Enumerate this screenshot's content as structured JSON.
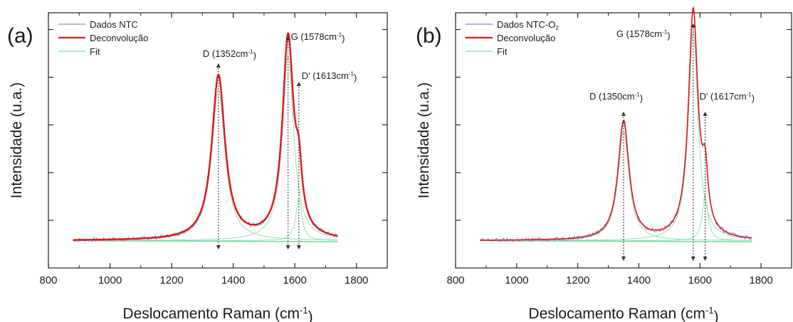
{
  "chart_data": [
    {
      "type": "line",
      "panel_label": "(a)",
      "xlabel": "Deslocamento Raman (cm",
      "xlabel_sup": "-1",
      "xlabel_suffix": ")",
      "ylabel": "Intensidade (u.a.)",
      "xlim": [
        800,
        1900
      ],
      "ylim": [
        -0.12,
        1.0
      ],
      "xticks": [
        800,
        1000,
        1200,
        1400,
        1600,
        1800
      ],
      "y_tick_labels_shown": false,
      "grid": false,
      "legend_position": "top-left",
      "legend": [
        {
          "label": "Dados NTC",
          "sub": "",
          "color": "#8a8fa8"
        },
        {
          "label": "Deconvolução",
          "sub": "",
          "color": "#e0161f"
        },
        {
          "label": "Fit",
          "sub": "",
          "color": "#7fdca8"
        }
      ],
      "annotations": [
        {
          "peak": "D",
          "label": "D (1352cm",
          "sup": "-1",
          "suffix": ")",
          "x": 1352
        },
        {
          "peak": "G",
          "label": "G (1578cm",
          "sup": "-1",
          "suffix": ")",
          "x": 1578
        },
        {
          "peak": "D'",
          "label": "D' (1613cm",
          "sup": "-1",
          "suffix": ")",
          "x": 1613
        }
      ],
      "series": [
        {
          "name": "Dados NTC",
          "color": "#8a8fa8",
          "role": "data"
        },
        {
          "name": "Deconvolução",
          "color": "#e0161f",
          "role": "fit_total",
          "x_range": [
            880,
            1740
          ],
          "baseline": 0.0,
          "peaks": [
            {
              "center": 1352,
              "height": 0.72,
              "width": 26
            },
            {
              "center": 1578,
              "height": 0.88,
              "width": 22
            },
            {
              "center": 1613,
              "height": 0.2,
              "width": 12
            }
          ]
        },
        {
          "name": "Fit",
          "color": "#7fdca8",
          "role": "component",
          "values": "individual Lorentzian components"
        }
      ]
    },
    {
      "type": "line",
      "panel_label": "(b)",
      "xlabel": "Deslocamento Raman (cm",
      "xlabel_sup": "-1",
      "xlabel_suffix": ")",
      "ylabel": "Intensidade (u.a.)",
      "xlim": [
        800,
        1900
      ],
      "ylim": [
        -0.12,
        1.0
      ],
      "xticks": [
        800,
        1000,
        1200,
        1400,
        1600,
        1800
      ],
      "y_tick_labels_shown": false,
      "grid": false,
      "legend_position": "top-left",
      "legend": [
        {
          "label": "Dados NTC-O",
          "sub": "2",
          "color": "#7a8cbf"
        },
        {
          "label": "Deconvolução",
          "sub": "",
          "color": "#e0161f"
        },
        {
          "label": "Fit",
          "sub": "",
          "color": "#7fdca8"
        }
      ],
      "annotations": [
        {
          "peak": "D",
          "label": "D (1350cm",
          "sup": "-1",
          "suffix": ")",
          "x": 1350
        },
        {
          "peak": "G",
          "label": "G (1578cm",
          "sup": "-1",
          "suffix": ")",
          "x": 1578
        },
        {
          "peak": "D'",
          "label": "D' (1617cm",
          "sup": "-1",
          "suffix": ")",
          "x": 1617
        }
      ],
      "series": [
        {
          "name": "Dados NTC-O2",
          "color": "#7a8cbf",
          "role": "data"
        },
        {
          "name": "Deconvolução",
          "color": "#e0161f",
          "role": "fit_total",
          "x_range": [
            880,
            1770
          ],
          "baseline": 0.0,
          "peaks": [
            {
              "center": 1350,
              "height": 0.52,
              "width": 22
            },
            {
              "center": 1578,
              "height": 1.0,
              "width": 19
            },
            {
              "center": 1617,
              "height": 0.22,
              "width": 11
            }
          ]
        },
        {
          "name": "Fit",
          "color": "#7fdca8",
          "role": "component",
          "values": "individual Lorentzian components"
        }
      ]
    }
  ]
}
